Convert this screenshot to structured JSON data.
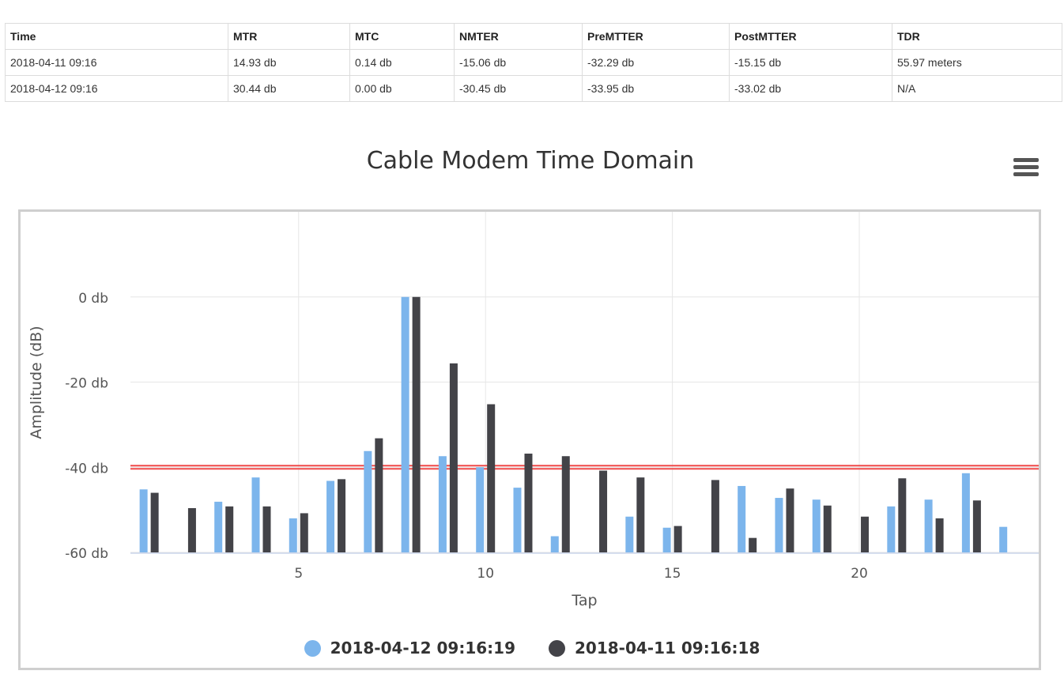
{
  "table": {
    "headers": [
      "Time",
      "MTR",
      "MTC",
      "NMTER",
      "PreMTTER",
      "PostMTTER",
      "TDR"
    ],
    "rows": [
      [
        "2018-04-11 09:16",
        "14.93 db",
        "0.14 db",
        "-15.06 db",
        "-32.29 db",
        "-15.15 db",
        "55.97 meters"
      ],
      [
        "2018-04-12 09:16",
        "30.44 db",
        "0.00 db",
        "-30.45 db",
        "-33.95 db",
        "-33.02 db",
        "N/A"
      ]
    ]
  },
  "chart_data": {
    "type": "bar",
    "title": "Cable Modem Time Domain",
    "xlabel": "Tap",
    "ylabel": "Amplitude (dB)",
    "xlim": [
      0.5,
      24.8
    ],
    "ylim": [
      -60,
      20
    ],
    "xticks": [
      5,
      10,
      15,
      20
    ],
    "yticks": [
      {
        "value": 0,
        "label": "0 db"
      },
      {
        "value": -20,
        "label": "-20 db"
      },
      {
        "value": -40,
        "label": "-40 db"
      },
      {
        "value": -60,
        "label": "-60 db"
      }
    ],
    "grid": true,
    "legend_position": "bottom-center",
    "threshold": {
      "value": -40,
      "color": "#f04a4a"
    },
    "categories": [
      1,
      2,
      3,
      4,
      5,
      6,
      7,
      8,
      9,
      10,
      11,
      12,
      13,
      14,
      15,
      16,
      17,
      18,
      19,
      20,
      21,
      22,
      23,
      24
    ],
    "series": [
      {
        "name": "2018-04-12 09:16:19",
        "color": "#7cb5ec",
        "values": [
          -45.2,
          null,
          -48.1,
          -42.4,
          -52.0,
          -43.2,
          -36.2,
          0,
          -37.4,
          -40.0,
          -44.8,
          -56.2,
          null,
          -51.6,
          -54.2,
          null,
          -44.4,
          -47.2,
          -47.6,
          null,
          -49.2,
          -47.6,
          -41.4,
          -54.0
        ]
      },
      {
        "name": "2018-04-11 09:16:18",
        "color": "#434348",
        "values": [
          -46.0,
          -49.6,
          -49.2,
          -49.2,
          -50.8,
          -42.8,
          -33.2,
          0,
          -15.6,
          -25.2,
          -36.8,
          -37.4,
          -40.8,
          -42.4,
          -53.8,
          -43.0,
          -56.6,
          -45.0,
          -49.0,
          -51.6,
          -42.6,
          -52.0,
          -47.8,
          null
        ]
      }
    ]
  }
}
